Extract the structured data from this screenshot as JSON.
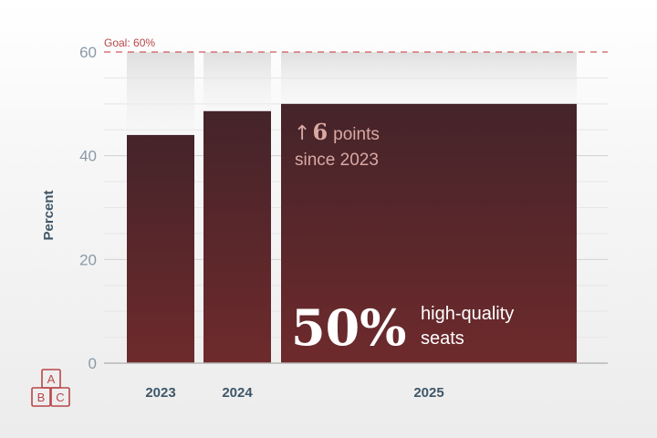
{
  "chart_data": {
    "type": "bar",
    "categories": [
      "2023",
      "2024",
      "2025"
    ],
    "values": [
      44,
      48.6,
      50
    ],
    "ylabel": "Percent",
    "xlabel": "",
    "ylim": [
      0,
      60
    ],
    "yticks": [
      0,
      20,
      40,
      60
    ],
    "grid": true,
    "goal": {
      "value": 60,
      "label": "Goal: 60%"
    },
    "callout": {
      "value_text": "50%",
      "line1": "high-quality",
      "line2": "seats"
    },
    "delta": {
      "arrow": "↑",
      "number": "6",
      "text1": "points",
      "text2": "since 2023"
    },
    "colors": {
      "bar_top": "#44242a",
      "bar_bottom": "#6e2a2c",
      "goal_line": "#d0585a",
      "icon": "#b8464a"
    }
  },
  "logo": {
    "icon": "abc-blocks-icon",
    "letters": [
      "A",
      "B",
      "C"
    ]
  }
}
